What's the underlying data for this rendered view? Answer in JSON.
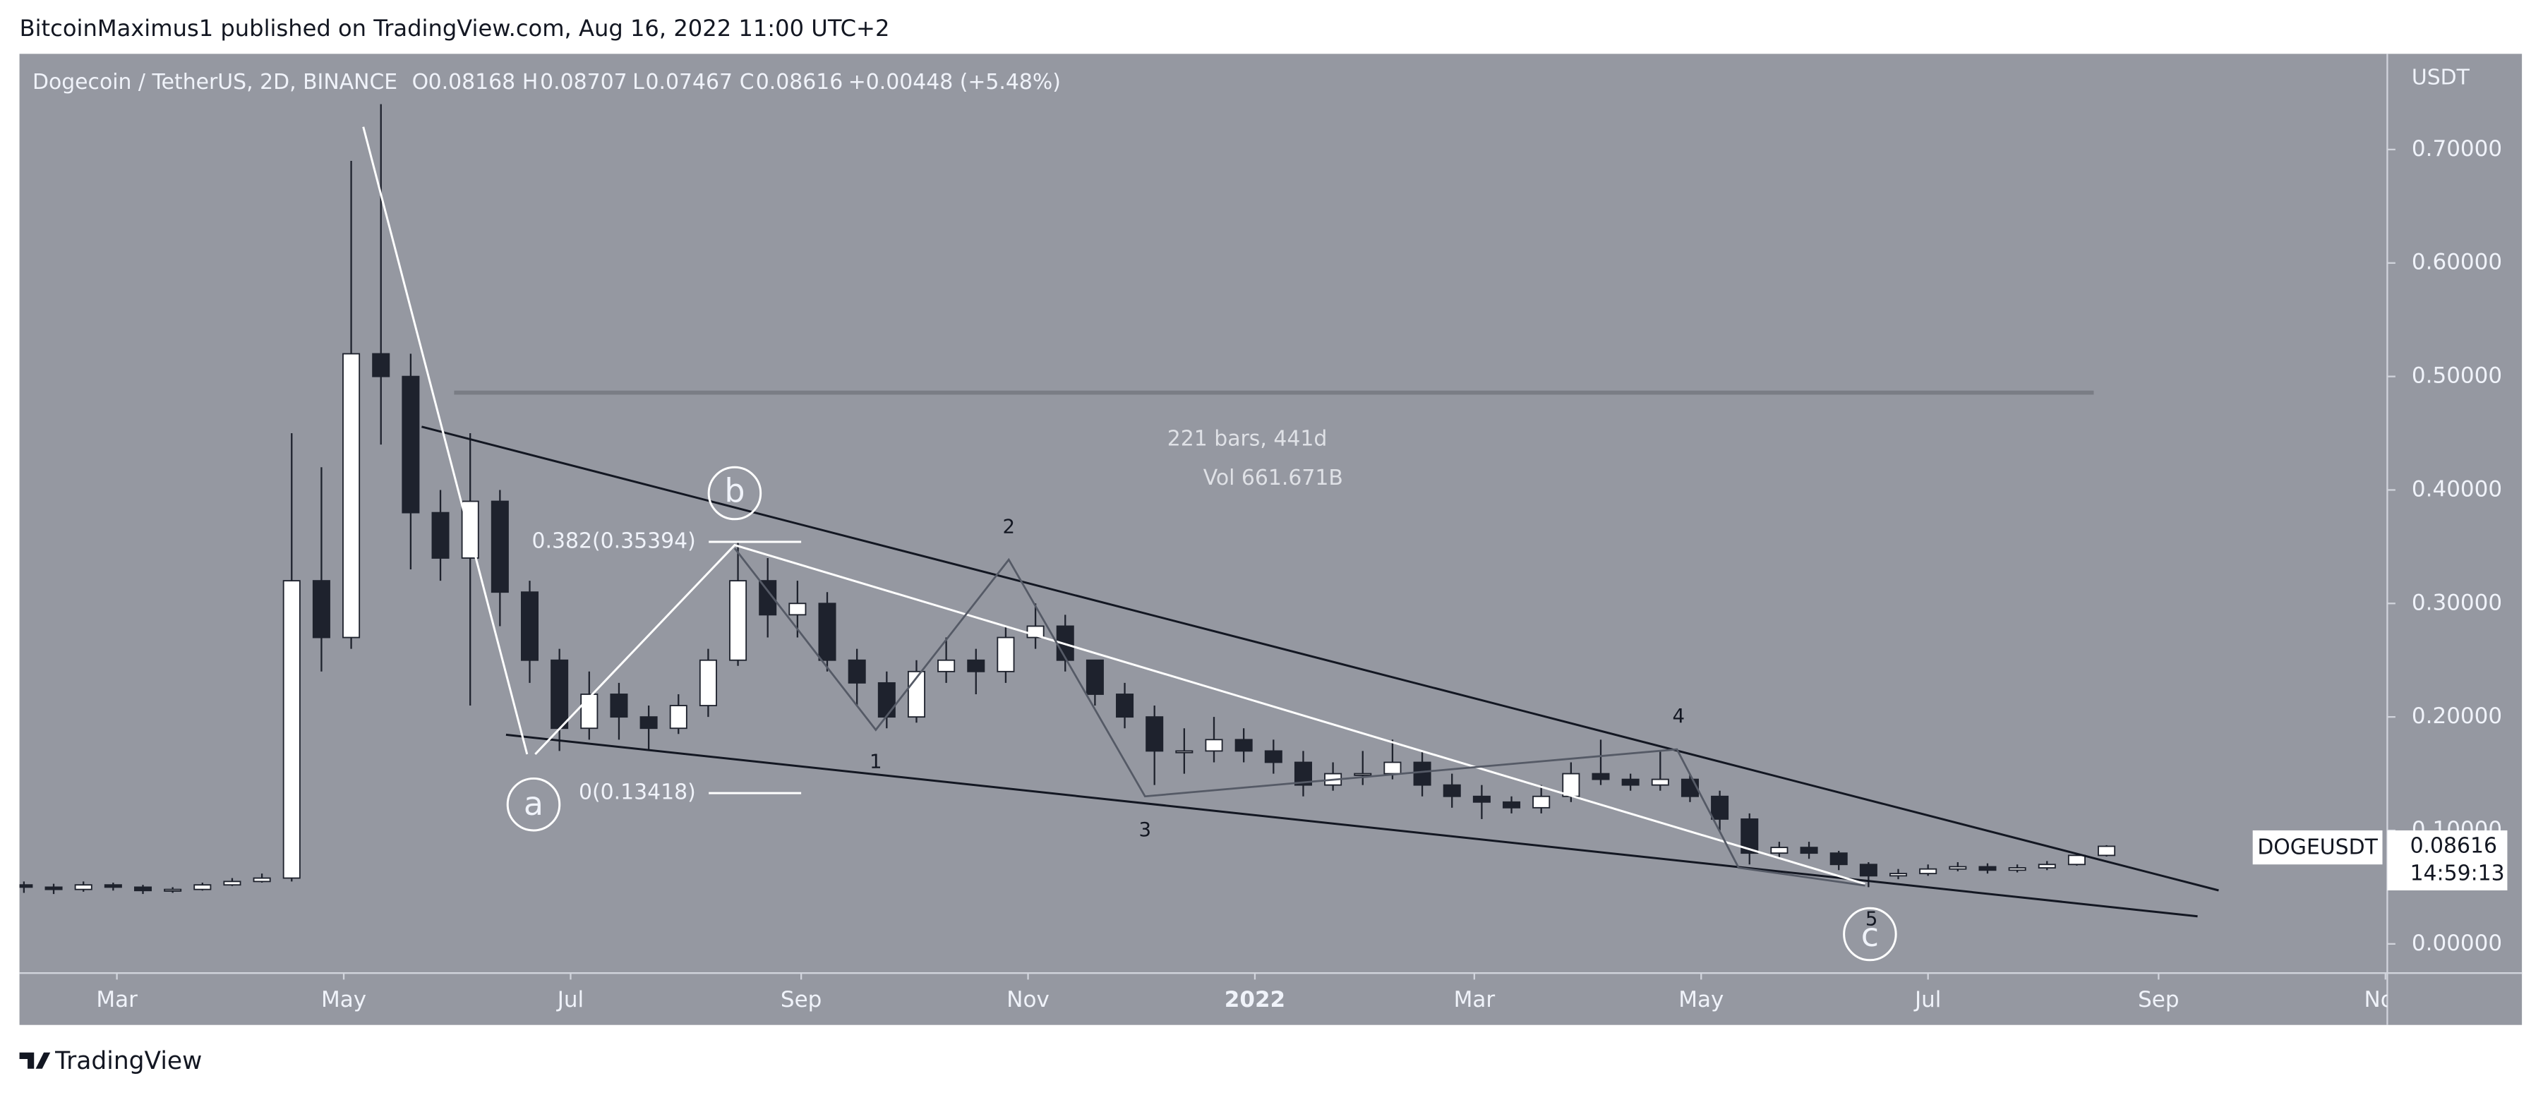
{
  "header": {
    "publisher": "BitcoinMaximus1 published on TradingView.com, Aug 16, 2022 11:00 UTC+2",
    "brand": "TradingView"
  },
  "chart_data": {
    "type": "candlestick",
    "title": "Dogecoin / TetherUS, 2D, BINANCE",
    "ohlc": {
      "o_label": "O",
      "o": "0.08168",
      "h_label": "H",
      "h": "0.08707",
      "l_label": "L",
      "l": "0.07467",
      "c_label": "C",
      "c": "0.08616",
      "change": "+0.00448 (+5.48%)"
    },
    "y_axis_label": "USDT",
    "up_color": "#ffffff",
    "down_color": "#1e222d",
    "background": "#9598a1",
    "x": [
      34,
      42,
      50,
      58,
      66,
      74,
      82,
      90,
      98,
      106,
      114,
      122,
      130,
      138,
      146,
      154,
      162,
      170,
      178,
      186,
      194,
      202,
      210,
      218,
      226,
      234,
      242,
      250,
      258,
      266,
      274,
      282,
      290,
      298,
      306,
      314,
      322,
      330,
      338,
      346,
      354,
      362,
      370,
      378,
      386,
      394,
      402,
      410,
      418,
      426,
      434,
      442,
      450,
      458,
      466,
      474,
      482,
      490,
      498,
      506,
      514,
      522,
      530,
      538,
      546,
      554,
      562,
      570,
      578,
      586,
      594
    ],
    "open": [
      0.052,
      0.05,
      0.048,
      0.052,
      0.05,
      0.047,
      0.048,
      0.052,
      0.055,
      0.058,
      0.32,
      0.27,
      0.52,
      0.5,
      0.38,
      0.34,
      0.39,
      0.31,
      0.25,
      0.19,
      0.22,
      0.2,
      0.19,
      0.21,
      0.25,
      0.32,
      0.29,
      0.3,
      0.25,
      0.23,
      0.2,
      0.24,
      0.25,
      0.24,
      0.27,
      0.28,
      0.25,
      0.22,
      0.2,
      0.17,
      0.17,
      0.18,
      0.17,
      0.16,
      0.14,
      0.15,
      0.15,
      0.16,
      0.14,
      0.13,
      0.125,
      0.12,
      0.13,
      0.15,
      0.145,
      0.14,
      0.145,
      0.13,
      0.11,
      0.08,
      0.085,
      0.08,
      0.07,
      0.06,
      0.062,
      0.066,
      0.068,
      0.065,
      0.067,
      0.07,
      0.078
    ],
    "high": [
      0.055,
      0.053,
      0.055,
      0.054,
      0.052,
      0.05,
      0.054,
      0.058,
      0.062,
      0.45,
      0.42,
      0.69,
      0.74,
      0.52,
      0.4,
      0.45,
      0.4,
      0.32,
      0.26,
      0.24,
      0.23,
      0.21,
      0.22,
      0.26,
      0.354,
      0.34,
      0.32,
      0.31,
      0.26,
      0.24,
      0.25,
      0.27,
      0.26,
      0.28,
      0.3,
      0.29,
      0.25,
      0.23,
      0.21,
      0.19,
      0.2,
      0.19,
      0.18,
      0.17,
      0.16,
      0.17,
      0.18,
      0.17,
      0.15,
      0.14,
      0.13,
      0.14,
      0.16,
      0.18,
      0.15,
      0.17,
      0.15,
      0.135,
      0.115,
      0.09,
      0.09,
      0.082,
      0.072,
      0.066,
      0.07,
      0.072,
      0.071,
      0.07,
      0.073,
      0.08,
      0.087
    ],
    "low": [
      0.045,
      0.044,
      0.046,
      0.047,
      0.044,
      0.045,
      0.047,
      0.051,
      0.054,
      0.055,
      0.24,
      0.26,
      0.44,
      0.33,
      0.32,
      0.21,
      0.28,
      0.23,
      0.17,
      0.18,
      0.18,
      0.17,
      0.185,
      0.2,
      0.245,
      0.27,
      0.27,
      0.24,
      0.21,
      0.19,
      0.195,
      0.23,
      0.22,
      0.23,
      0.26,
      0.24,
      0.21,
      0.19,
      0.14,
      0.15,
      0.16,
      0.16,
      0.15,
      0.13,
      0.135,
      0.14,
      0.145,
      0.13,
      0.12,
      0.11,
      0.115,
      0.115,
      0.125,
      0.14,
      0.135,
      0.135,
      0.125,
      0.1,
      0.07,
      0.075,
      0.075,
      0.065,
      0.05,
      0.057,
      0.06,
      0.064,
      0.062,
      0.063,
      0.065,
      0.069,
      0.077
    ],
    "close": [
      0.05,
      0.048,
      0.052,
      0.05,
      0.047,
      0.048,
      0.052,
      0.055,
      0.058,
      0.32,
      0.27,
      0.52,
      0.5,
      0.38,
      0.34,
      0.39,
      0.31,
      0.25,
      0.19,
      0.22,
      0.2,
      0.19,
      0.21,
      0.25,
      0.32,
      0.29,
      0.3,
      0.25,
      0.23,
      0.2,
      0.24,
      0.25,
      0.24,
      0.27,
      0.28,
      0.25,
      0.22,
      0.2,
      0.17,
      0.17,
      0.18,
      0.17,
      0.16,
      0.14,
      0.15,
      0.15,
      0.16,
      0.14,
      0.13,
      0.125,
      0.12,
      0.13,
      0.15,
      0.145,
      0.14,
      0.145,
      0.13,
      0.11,
      0.08,
      0.085,
      0.08,
      0.07,
      0.06,
      0.062,
      0.066,
      0.068,
      0.065,
      0.067,
      0.07,
      0.078,
      0.086
    ],
    "ylim": [
      -0.0257,
      0.7843
    ],
    "yticks": [
      {
        "value": 0,
        "label": "0.00000"
      },
      {
        "value": 0.1,
        "label": "0.10000"
      },
      {
        "value": 0.2,
        "label": "0.20000"
      },
      {
        "value": 0.3,
        "label": "0.30000"
      },
      {
        "value": 0.4,
        "label": "0.40000"
      },
      {
        "value": 0.5,
        "label": "0.50000"
      },
      {
        "value": 0.6,
        "label": "0.60000"
      },
      {
        "value": 0.7,
        "label": "0.70000"
      }
    ],
    "xlim": [
      32.8,
      669.5
    ],
    "xticks": [
      {
        "value": 59,
        "label": "Mar"
      },
      {
        "value": 120,
        "label": "May"
      },
      {
        "value": 181,
        "label": "Jul"
      },
      {
        "value": 243,
        "label": "Sep"
      },
      {
        "value": 304,
        "label": "Nov"
      },
      {
        "value": 365,
        "label": "2022"
      },
      {
        "value": 424,
        "label": "Mar"
      },
      {
        "value": 485,
        "label": "May"
      },
      {
        "value": 546,
        "label": "Jul"
      },
      {
        "value": 608,
        "label": "Sep"
      },
      {
        "value": 669,
        "label": "Nov"
      }
    ],
    "annotations": {
      "range_bars": "221 bars, 441d",
      "range_vol": "Vol 661.671B",
      "fib_382": "0.382(0.35394)",
      "fib_0": "0(0.13418)",
      "wave_a": "a",
      "wave_b": "b",
      "wave_c": "c",
      "wave_1": "1",
      "wave_2": "2",
      "wave_3": "3",
      "wave_4": "4",
      "wave_5": "5"
    },
    "last_price": {
      "symbol": "DOGEUSDT",
      "price": "0.08616",
      "countdown": "14:59:13"
    }
  }
}
